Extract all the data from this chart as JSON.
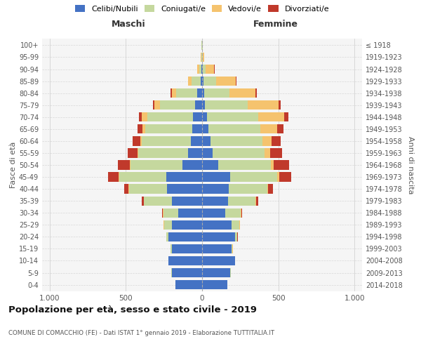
{
  "age_groups": [
    "0-4",
    "5-9",
    "10-14",
    "15-19",
    "20-24",
    "25-29",
    "30-34",
    "35-39",
    "40-44",
    "45-49",
    "50-54",
    "55-59",
    "60-64",
    "65-69",
    "70-74",
    "75-79",
    "80-84",
    "85-89",
    "90-94",
    "95-99",
    "100+"
  ],
  "birth_years": [
    "2014-2018",
    "2009-2013",
    "2004-2008",
    "1999-2003",
    "1994-1998",
    "1989-1993",
    "1984-1988",
    "1979-1983",
    "1974-1978",
    "1969-1973",
    "1964-1968",
    "1959-1963",
    "1954-1958",
    "1949-1953",
    "1944-1948",
    "1939-1943",
    "1934-1938",
    "1929-1933",
    "1924-1928",
    "1919-1923",
    "≤ 1918"
  ],
  "maschi": {
    "celibi": [
      175,
      200,
      220,
      200,
      220,
      200,
      155,
      200,
      230,
      235,
      130,
      90,
      75,
      65,
      60,
      45,
      30,
      10,
      5,
      2,
      2
    ],
    "coniugati": [
      2,
      2,
      2,
      5,
      15,
      50,
      100,
      180,
      250,
      310,
      340,
      330,
      320,
      310,
      300,
      230,
      140,
      60,
      15,
      3,
      1
    ],
    "vedovi": [
      0,
      0,
      0,
      0,
      1,
      1,
      1,
      2,
      2,
      3,
      3,
      5,
      8,
      15,
      35,
      40,
      30,
      20,
      10,
      2,
      0
    ],
    "divorziati": [
      0,
      0,
      0,
      0,
      1,
      2,
      5,
      15,
      30,
      70,
      80,
      65,
      55,
      35,
      20,
      8,
      5,
      2,
      0,
      0,
      0
    ]
  },
  "femmine": {
    "nubili": [
      165,
      185,
      215,
      195,
      215,
      195,
      150,
      170,
      175,
      185,
      105,
      70,
      55,
      40,
      30,
      20,
      15,
      10,
      5,
      2,
      2
    ],
    "coniugate": [
      2,
      2,
      2,
      5,
      15,
      50,
      105,
      180,
      255,
      310,
      345,
      340,
      340,
      340,
      340,
      280,
      165,
      80,
      20,
      3,
      1
    ],
    "vedove": [
      0,
      0,
      0,
      1,
      2,
      2,
      2,
      3,
      5,
      10,
      20,
      35,
      60,
      115,
      170,
      200,
      170,
      130,
      55,
      10,
      2
    ],
    "divorziate": [
      0,
      0,
      0,
      0,
      1,
      2,
      5,
      15,
      30,
      80,
      100,
      80,
      60,
      40,
      25,
      15,
      10,
      5,
      2,
      0,
      0
    ]
  },
  "colors": {
    "celibi": "#4472C4",
    "coniugati": "#C5D89E",
    "vedovi": "#F5C36E",
    "divorziati": "#C0392B"
  },
  "legend_labels": [
    "Celibi/Nubili",
    "Coniugati/e",
    "Vedovi/e",
    "Divorziati/e"
  ],
  "legend_colors": [
    "#4472C4",
    "#C5D89E",
    "#F5C36E",
    "#C0392B"
  ],
  "title": "Popolazione per età, sesso e stato civile - 2019",
  "subtitle": "COMUNE DI COMACCHIO (FE) - Dati ISTAT 1° gennaio 2019 - Elaborazione TUTTITALIA.IT",
  "ylabel_left": "Fasce di età",
  "ylabel_right": "Anni di nascita",
  "xlabel_left": "Maschi",
  "xlabel_right": "Femmine",
  "xlim": 1050,
  "background_color": "#f5f5f5",
  "grid_color": "#cccccc"
}
